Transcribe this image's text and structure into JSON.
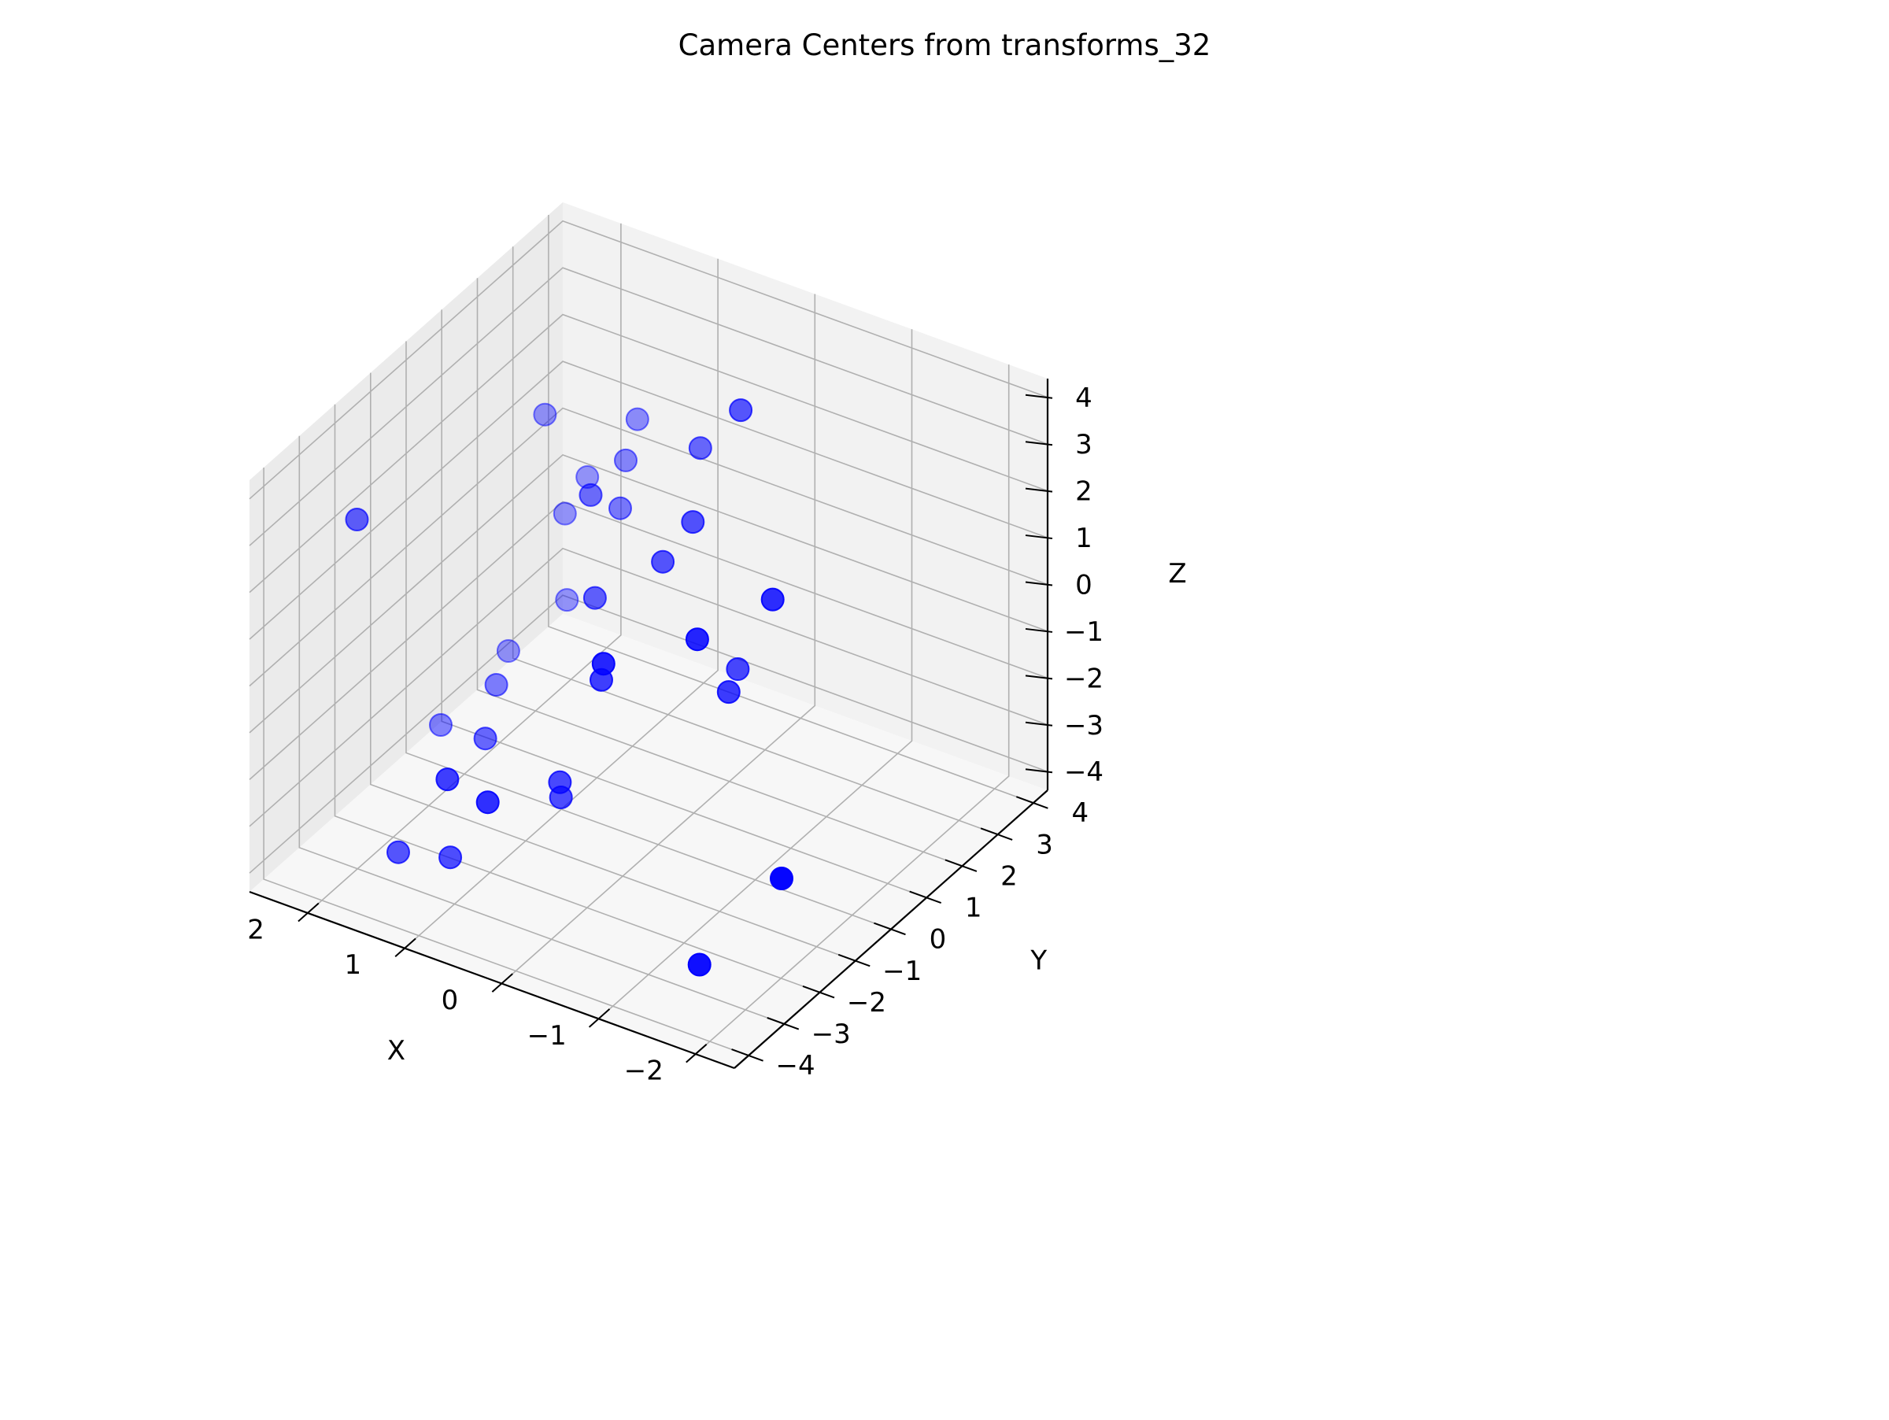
{
  "chart_data": {
    "type": "scatter",
    "projection": "3d",
    "title": "Camera Centers from transforms_32",
    "xlabel": "X",
    "ylabel": "Y",
    "zlabel": "Z",
    "xlim": [
      -2.4,
      2.6
    ],
    "ylim": [
      -4.4,
      4.4
    ],
    "zlim": [
      -4.4,
      4.4
    ],
    "xticks": [
      "−2",
      "−1",
      "0",
      "1",
      "2"
    ],
    "yticks": [
      "−4",
      "−3",
      "−2",
      "−1",
      "0",
      "1",
      "2",
      "3",
      "4"
    ],
    "zticks": [
      "−4",
      "−3",
      "−2",
      "−1",
      "0",
      "1",
      "2",
      "3",
      "4"
    ],
    "grid": true,
    "marker_color": "#0000ff",
    "pane_colors": [
      "#f2f2f2",
      "#ebebeb",
      "#f7f7f7"
    ],
    "series": [
      {
        "points": [
          [
            -2.3,
            -2.8,
            -1.5
          ],
          [
            -1.6,
            -3.2,
            -3.6
          ],
          [
            -1.4,
            -0.6,
            2.3
          ],
          [
            -1.1,
            -1.9,
            2.1
          ],
          [
            -0.8,
            -0.2,
            -0.4
          ],
          [
            -0.6,
            0.6,
            -0.6
          ],
          [
            -0.5,
            -2.9,
            1.8
          ],
          [
            -0.3,
            1.5,
            4.1
          ],
          [
            -0.1,
            0.7,
            2.1
          ],
          [
            0.0,
            -1.6,
            0.2
          ],
          [
            0.1,
            0.4,
            1.3
          ],
          [
            0.3,
            2.0,
            2.5
          ],
          [
            0.4,
            -3.7,
            -1.3
          ],
          [
            0.5,
            -1.4,
            -2.5
          ],
          [
            0.6,
            -1.1,
            -3.1
          ],
          [
            0.8,
            0.4,
            0.0
          ],
          [
            1.0,
            -3.2,
            -1.6
          ],
          [
            1.1,
            1.1,
            1.5
          ],
          [
            1.2,
            2.2,
            0.4
          ],
          [
            1.3,
            -2.3,
            -4.1
          ],
          [
            1.4,
            2.9,
            0.8
          ],
          [
            1.5,
            3.5,
            1.2
          ],
          [
            1.6,
            -0.5,
            -3.0
          ],
          [
            1.8,
            -2.4,
            -4.3
          ],
          [
            2.0,
            0.9,
            -3.1
          ],
          [
            2.1,
            3.1,
            -1.0
          ],
          [
            2.2,
            4.0,
            -0.9
          ],
          [
            2.3,
            -2.2,
            2.3
          ],
          [
            2.5,
            2.6,
            -3.9
          ],
          [
            2.5,
            0.7,
            -4.2
          ],
          [
            2.6,
            3.9,
            0.2
          ],
          [
            2.3,
            3.7,
            -3.4
          ]
        ]
      }
    ]
  }
}
